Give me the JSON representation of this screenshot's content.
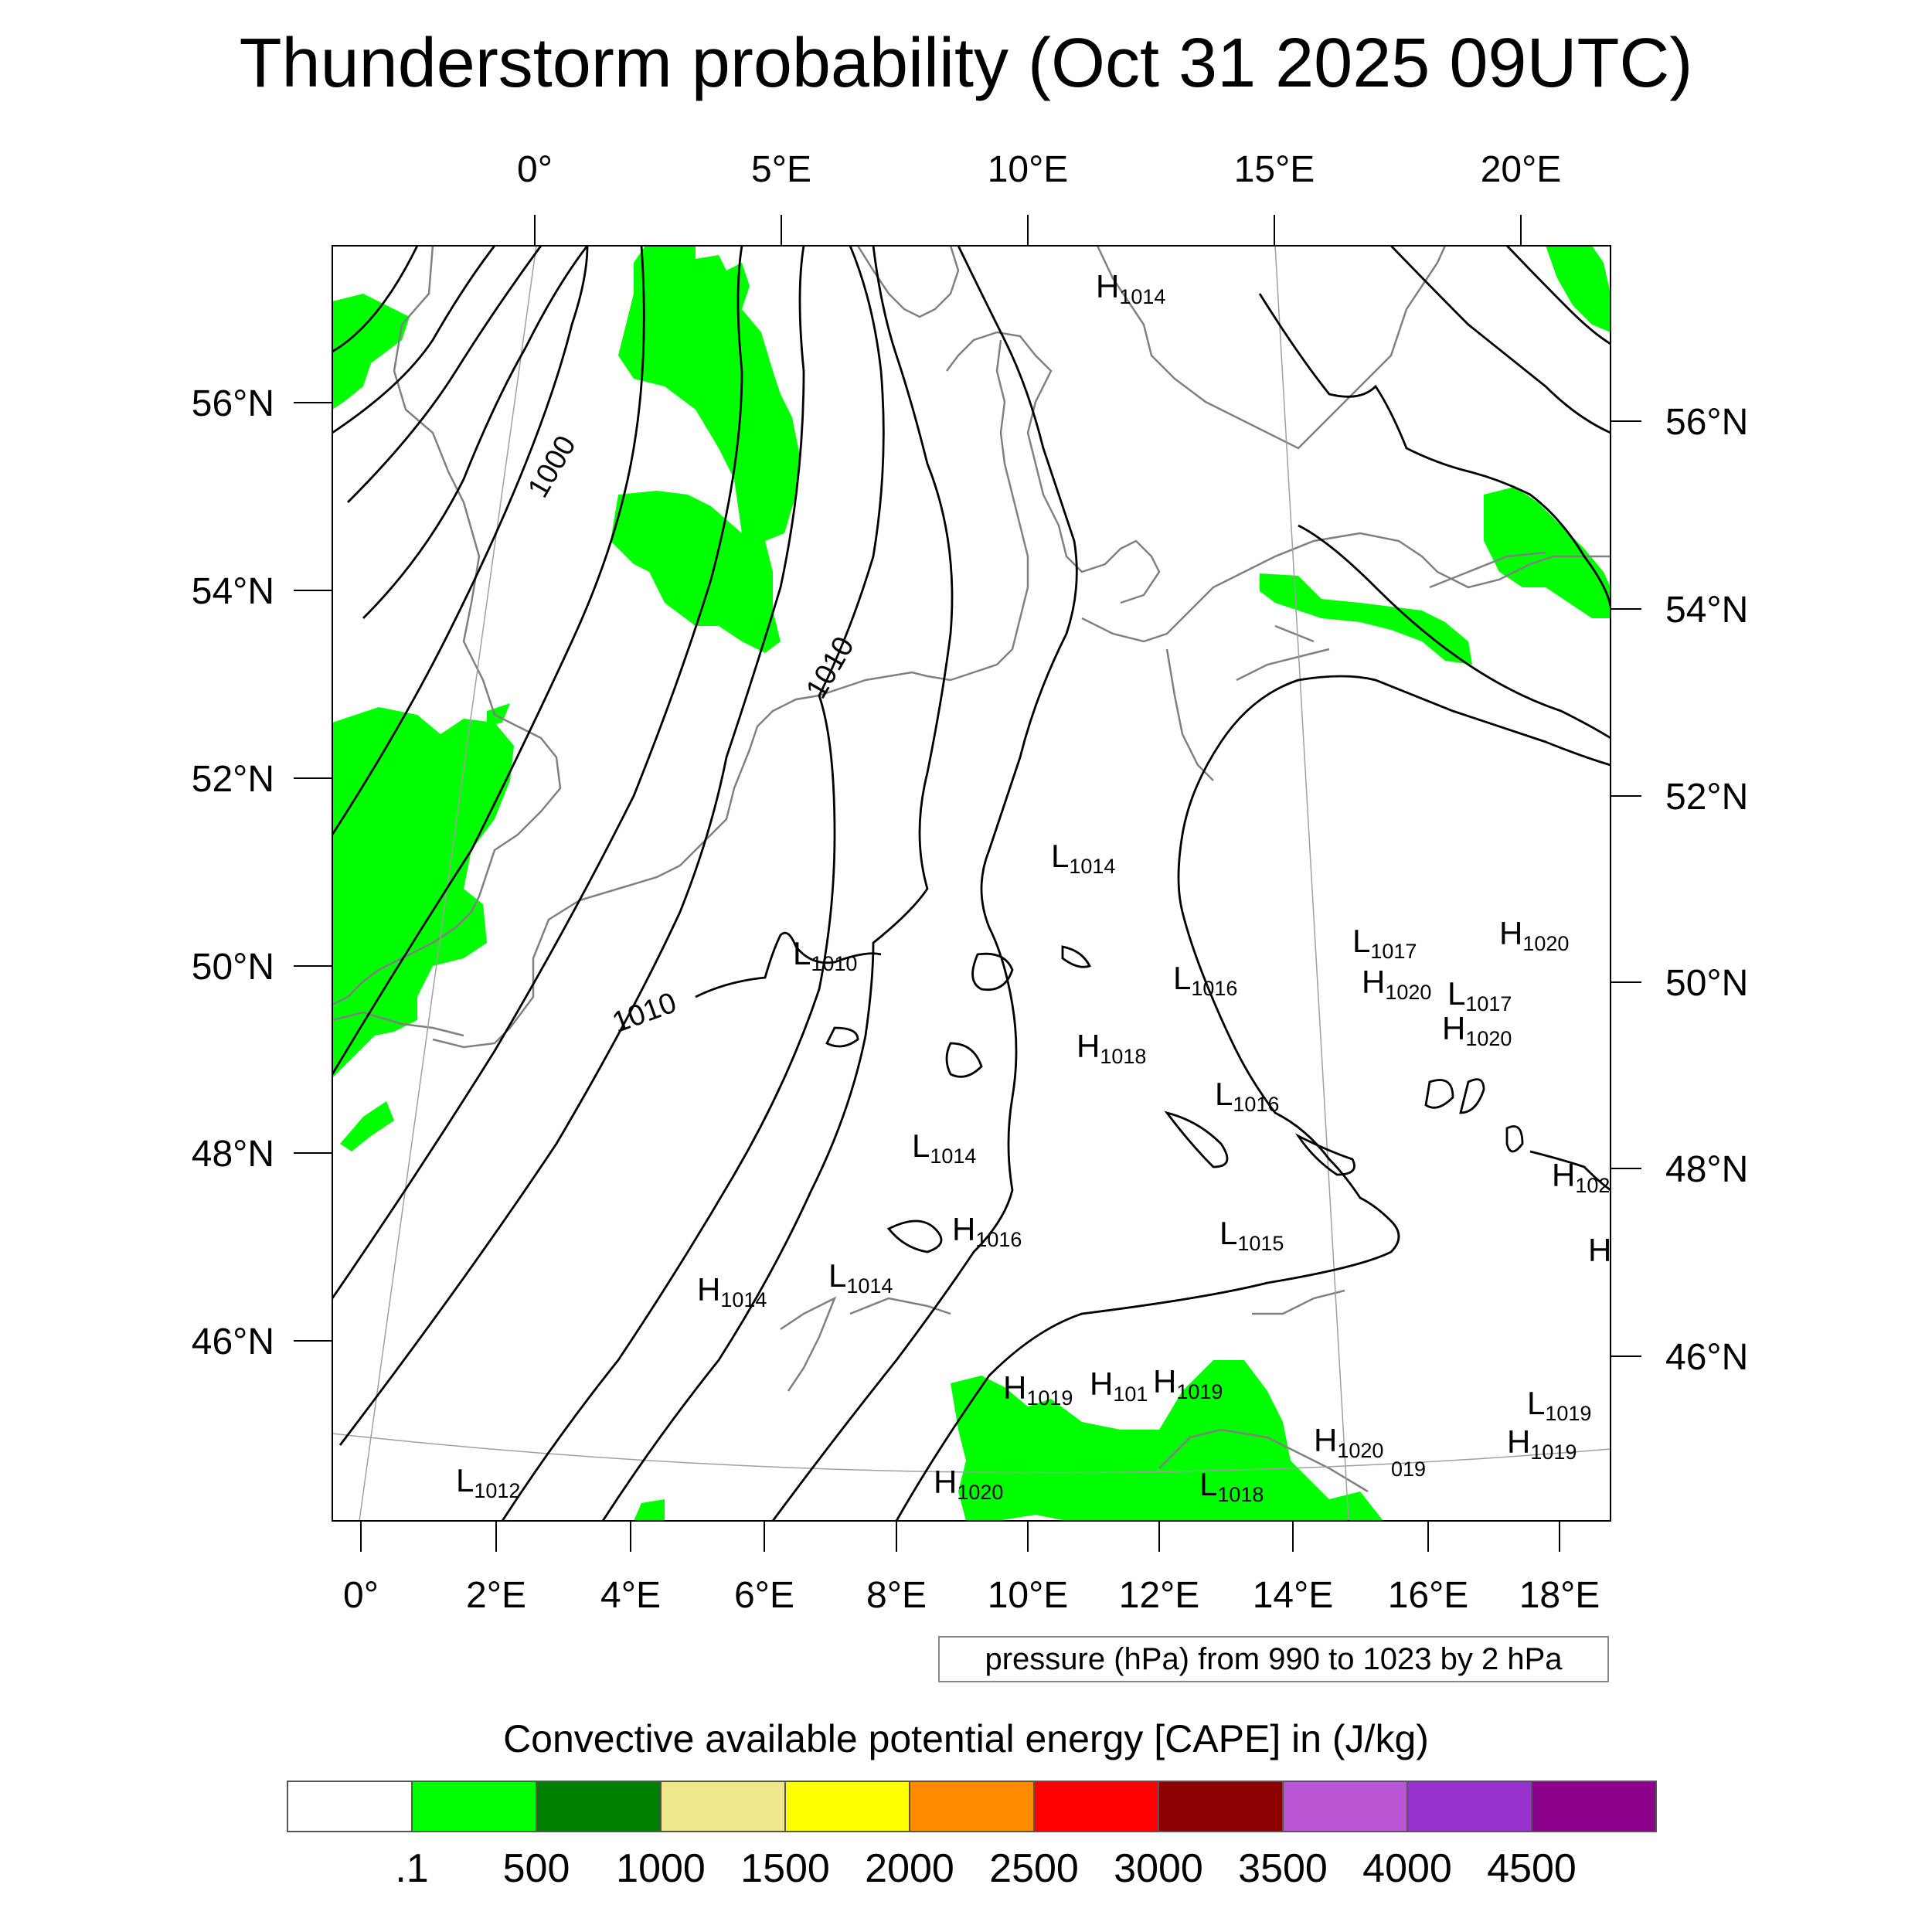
{
  "title": "Thunderstorm probability (Oct 31 2025 09UTC)",
  "lon_top_labels": [
    "0°",
    "5°E",
    "10°E",
    "15°E",
    "20°E"
  ],
  "lon_bottom_labels": [
    "0°",
    "2°E",
    "4°E",
    "6°E",
    "8°E",
    "10°E",
    "12°E",
    "14°E",
    "16°E",
    "18°E"
  ],
  "lat_left_labels": [
    "56°N",
    "54°N",
    "52°N",
    "50°N",
    "48°N",
    "46°N"
  ],
  "lat_right_labels": [
    "56°N",
    "54°N",
    "52°N",
    "50°N",
    "48°N",
    "46°N"
  ],
  "isobar_labels": [
    "1000",
    "1010",
    "1010"
  ],
  "pressure_centers": [
    {
      "type": "H",
      "value": "1014"
    },
    {
      "type": "L",
      "value": "1014"
    },
    {
      "type": "L",
      "value": "1010"
    },
    {
      "type": "L",
      "value": "1017"
    },
    {
      "type": "H",
      "value": "1020"
    },
    {
      "type": "L",
      "value": "1016"
    },
    {
      "type": "H",
      "value": "1020"
    },
    {
      "type": "L",
      "value": "1017"
    },
    {
      "type": "H",
      "value": "1020"
    },
    {
      "type": "H",
      "value": "1018"
    },
    {
      "type": "L",
      "value": "1016"
    },
    {
      "type": "L",
      "value": "1014"
    },
    {
      "type": "H",
      "value": "102"
    },
    {
      "type": "H",
      "value": "1016"
    },
    {
      "type": "L",
      "value": "1015"
    },
    {
      "type": "H",
      "value": ""
    },
    {
      "type": "H",
      "value": "1014"
    },
    {
      "type": "L",
      "value": "1014"
    },
    {
      "type": "H",
      "value": "1019"
    },
    {
      "type": "H",
      "value": "101"
    },
    {
      "type": "H",
      "value": "1019"
    },
    {
      "type": "L",
      "value": "1019"
    },
    {
      "type": "H",
      "value": "1020"
    },
    {
      "type": "H",
      "value": "1019"
    },
    {
      "type": "L",
      "value": "1012"
    },
    {
      "type": "H",
      "value": "1020"
    },
    {
      "type": "L",
      "value": "1018"
    },
    {
      "type": "",
      "value": "019"
    }
  ],
  "pressure_note": "pressure (hPa) from 990 to 1023 by 2 hPa",
  "colorbar": {
    "title": "Convective available potential energy [CAPE] in (J/kg)",
    "tick_labels": [
      ".1",
      "500",
      "1000",
      "1500",
      "2000",
      "2500",
      "3000",
      "3500",
      "4000",
      "4500"
    ],
    "colors": [
      "#ffffff",
      "#00ff00",
      "#008000",
      "#f0e68c",
      "#ffff00",
      "#ff8c00",
      "#ff0000",
      "#8b0000",
      "#ba55d3",
      "#9932cc",
      "#8b008b"
    ]
  },
  "colors": {
    "cape_low": "#00ff00",
    "isobar": "#000000",
    "coastline": "#808080",
    "graticule": "#a0a0a0"
  }
}
